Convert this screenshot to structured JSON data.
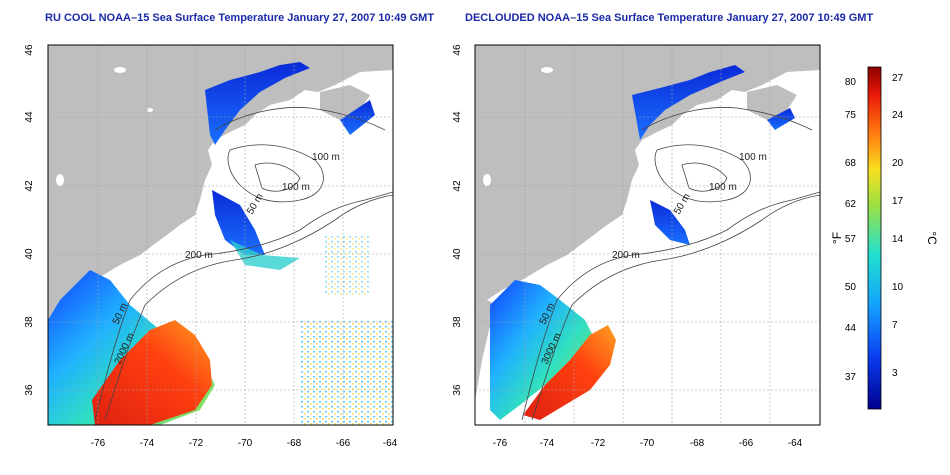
{
  "panels": [
    {
      "title": "RU COOL NOAA–15 Sea Surface Temperature January 27, 2007 10:49 GMT",
      "x_ticks": [
        "-76",
        "-74",
        "-72",
        "-70",
        "-68",
        "-66",
        "-64"
      ],
      "y_ticks": [
        "36",
        "38",
        "40",
        "42",
        "44",
        "46"
      ],
      "contour_labels": [
        "100 m",
        "100 m",
        "50 m",
        "200 m",
        "50 m",
        "2000 m"
      ]
    },
    {
      "title": "DECLOUDED NOAA–15 Sea Surface Temperature January 27, 2007 10:49 GMT",
      "x_ticks": [
        "-76",
        "-74",
        "-72",
        "-70",
        "-68",
        "-66",
        "-64"
      ],
      "y_ticks": [
        "36",
        "38",
        "40",
        "42",
        "44",
        "46"
      ],
      "contour_labels": [
        "100 m",
        "100 m",
        "50 m",
        "200 m",
        "50 m",
        "3000 m"
      ]
    }
  ],
  "colorbar": {
    "fahrenheit_label": "°F",
    "celsius_label": "°C",
    "fahrenheit_ticks": [
      "80",
      "75",
      "68",
      "62",
      "57",
      "50",
      "44",
      "37"
    ],
    "celsius_ticks": [
      "27",
      "24",
      "20",
      "17",
      "14",
      "10",
      "7",
      "3"
    ],
    "colors": {
      "cold": "#0000a0",
      "cool": "#1060ff",
      "mild": "#20d0e0",
      "warm": "#f0e020",
      "hot": "#ff3010",
      "hottest": "#900000"
    }
  },
  "colors": {
    "land": "#bebebe",
    "water": "#ffffff",
    "title": "#1a2aa8",
    "contour": "#444444",
    "grid": "#a0a0a0"
  }
}
